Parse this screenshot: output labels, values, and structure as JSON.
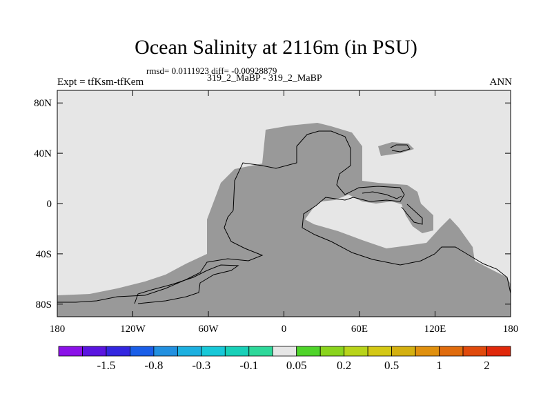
{
  "chart_data": {
    "type": "heatmap",
    "title": "Ocean Salinity at 2116m (in PSU)",
    "stats_text": "rmsd= 0.0111923 diff= -0.00928879",
    "case_text": "319_2_MaBP - 319_2_MaBP",
    "left_label": "Expt = tfKsm-tfKem",
    "right_label": "ANN",
    "x_range": [
      -180,
      180
    ],
    "y_range": [
      -90,
      90
    ],
    "x_ticks": [
      {
        "value": -180,
        "label": "180"
      },
      {
        "value": -120,
        "label": "120W"
      },
      {
        "value": -60,
        "label": "60W"
      },
      {
        "value": 0,
        "label": "0"
      },
      {
        "value": 60,
        "label": "60E"
      },
      {
        "value": 120,
        "label": "120E"
      },
      {
        "value": 180,
        "label": "180"
      }
    ],
    "y_ticks": [
      {
        "value": 80,
        "label": "80N"
      },
      {
        "value": 40,
        "label": "40N"
      },
      {
        "value": 0,
        "label": "0"
      },
      {
        "value": -40,
        "label": "40S"
      },
      {
        "value": -80,
        "label": "80S"
      }
    ],
    "ocean_value_bin": "-0.05 to 0.05",
    "land_color": "#999999",
    "ocean_color": "#e6e6e6",
    "colorbar": {
      "colors": [
        "#8b11e8",
        "#5a15e0",
        "#3326e0",
        "#1a5ee8",
        "#2290e0",
        "#1db0e0",
        "#18c8d8",
        "#18d0b8",
        "#2ed89a",
        "#e6e6e6",
        "#4fd42a",
        "#8ad41d",
        "#b8d41a",
        "#d4c815",
        "#d4b010",
        "#e0900e",
        "#e06c0d",
        "#e04a0c",
        "#e0280b"
      ],
      "labels": [
        {
          "after_box": 2,
          "text": "-1.5"
        },
        {
          "after_box": 4,
          "text": "-0.8"
        },
        {
          "after_box": 6,
          "text": "-0.3"
        },
        {
          "after_box": 8,
          "text": "-0.1"
        },
        {
          "after_box": 10,
          "text": "0.05"
        },
        {
          "after_box": 12,
          "text": "0.2"
        },
        {
          "after_box": 14,
          "text": "0.5"
        },
        {
          "after_box": 16,
          "text": "1"
        },
        {
          "after_box": 18,
          "text": "2"
        }
      ]
    }
  }
}
